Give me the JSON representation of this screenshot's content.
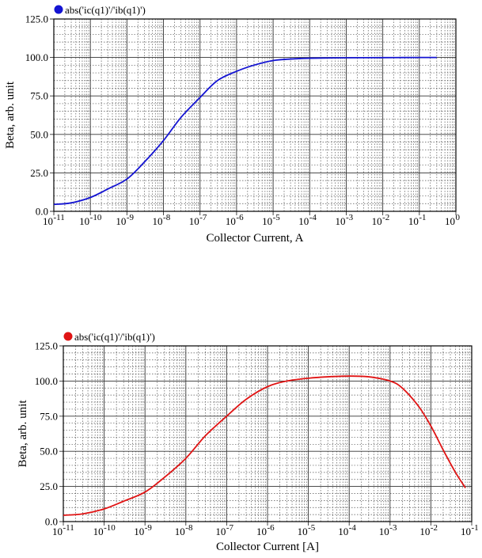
{
  "chart_data": [
    {
      "type": "line",
      "legend": "abs('ic(q1)'/'ib(q1)')",
      "legend_placement": "top-left",
      "xlabel": "Collector Current, A",
      "ylabel": "Beta, arb. unit",
      "xscale": "log",
      "xlim": [
        1e-11,
        1
      ],
      "ylim": [
        0,
        125
      ],
      "x_tick_exponents": [
        "-11",
        "-10",
        "-9",
        "-8",
        "-7",
        "-6",
        "-5",
        "-4",
        "-3",
        "-2",
        "-1",
        "0"
      ],
      "y_ticks": [
        "0.0",
        "25.0",
        "50.0",
        "75.0",
        "100.0",
        "125.0"
      ],
      "grid": true,
      "series": [
        {
          "color": "#1414d2",
          "x": [
            1e-11,
            3e-11,
            1e-10,
            3e-10,
            1e-09,
            3e-09,
            1e-08,
            3e-08,
            1e-07,
            3e-07,
            1e-06,
            3e-06,
            1e-05,
            3e-05,
            0.0001,
            0.001,
            0.01,
            0.1,
            0.3
          ],
          "y": [
            4.5,
            5.5,
            9,
            14.5,
            21,
            32,
            46,
            61,
            74,
            85,
            91,
            95,
            98,
            99,
            99.5,
            99.8,
            99.9,
            100,
            100
          ]
        }
      ]
    },
    {
      "type": "line",
      "legend": "abs('ic(q1)'/'ib(q1)')",
      "legend_placement": "top-left",
      "xlabel": "Collector Current  [A]",
      "ylabel": "Beta, arb. unit",
      "xscale": "log",
      "xlim": [
        1e-11,
        0.1
      ],
      "ylim": [
        0,
        125
      ],
      "x_tick_exponents": [
        "-11",
        "-10",
        "-9",
        "-8",
        "-7",
        "-6",
        "-5",
        "-4",
        "-3",
        "-2",
        "-1"
      ],
      "y_ticks": [
        "0.0",
        "25.0",
        "50.0",
        "75.0",
        "100.0",
        "125.0"
      ],
      "grid": true,
      "series": [
        {
          "color": "#e01414",
          "x": [
            1e-11,
            3e-11,
            1e-10,
            3e-10,
            1e-09,
            3e-09,
            1e-08,
            3e-08,
            1e-07,
            3e-07,
            1e-06,
            3e-06,
            1e-05,
            3e-05,
            0.0001,
            0.0003,
            0.001,
            0.002,
            0.005,
            0.01,
            0.02,
            0.04,
            0.07
          ],
          "y": [
            4.5,
            5.5,
            9,
            14.5,
            21,
            31.5,
            45,
            61,
            75,
            87,
            96,
            100,
            102,
            103,
            103.5,
            103,
            100,
            95,
            82,
            68,
            51,
            35,
            24
          ]
        }
      ]
    }
  ]
}
